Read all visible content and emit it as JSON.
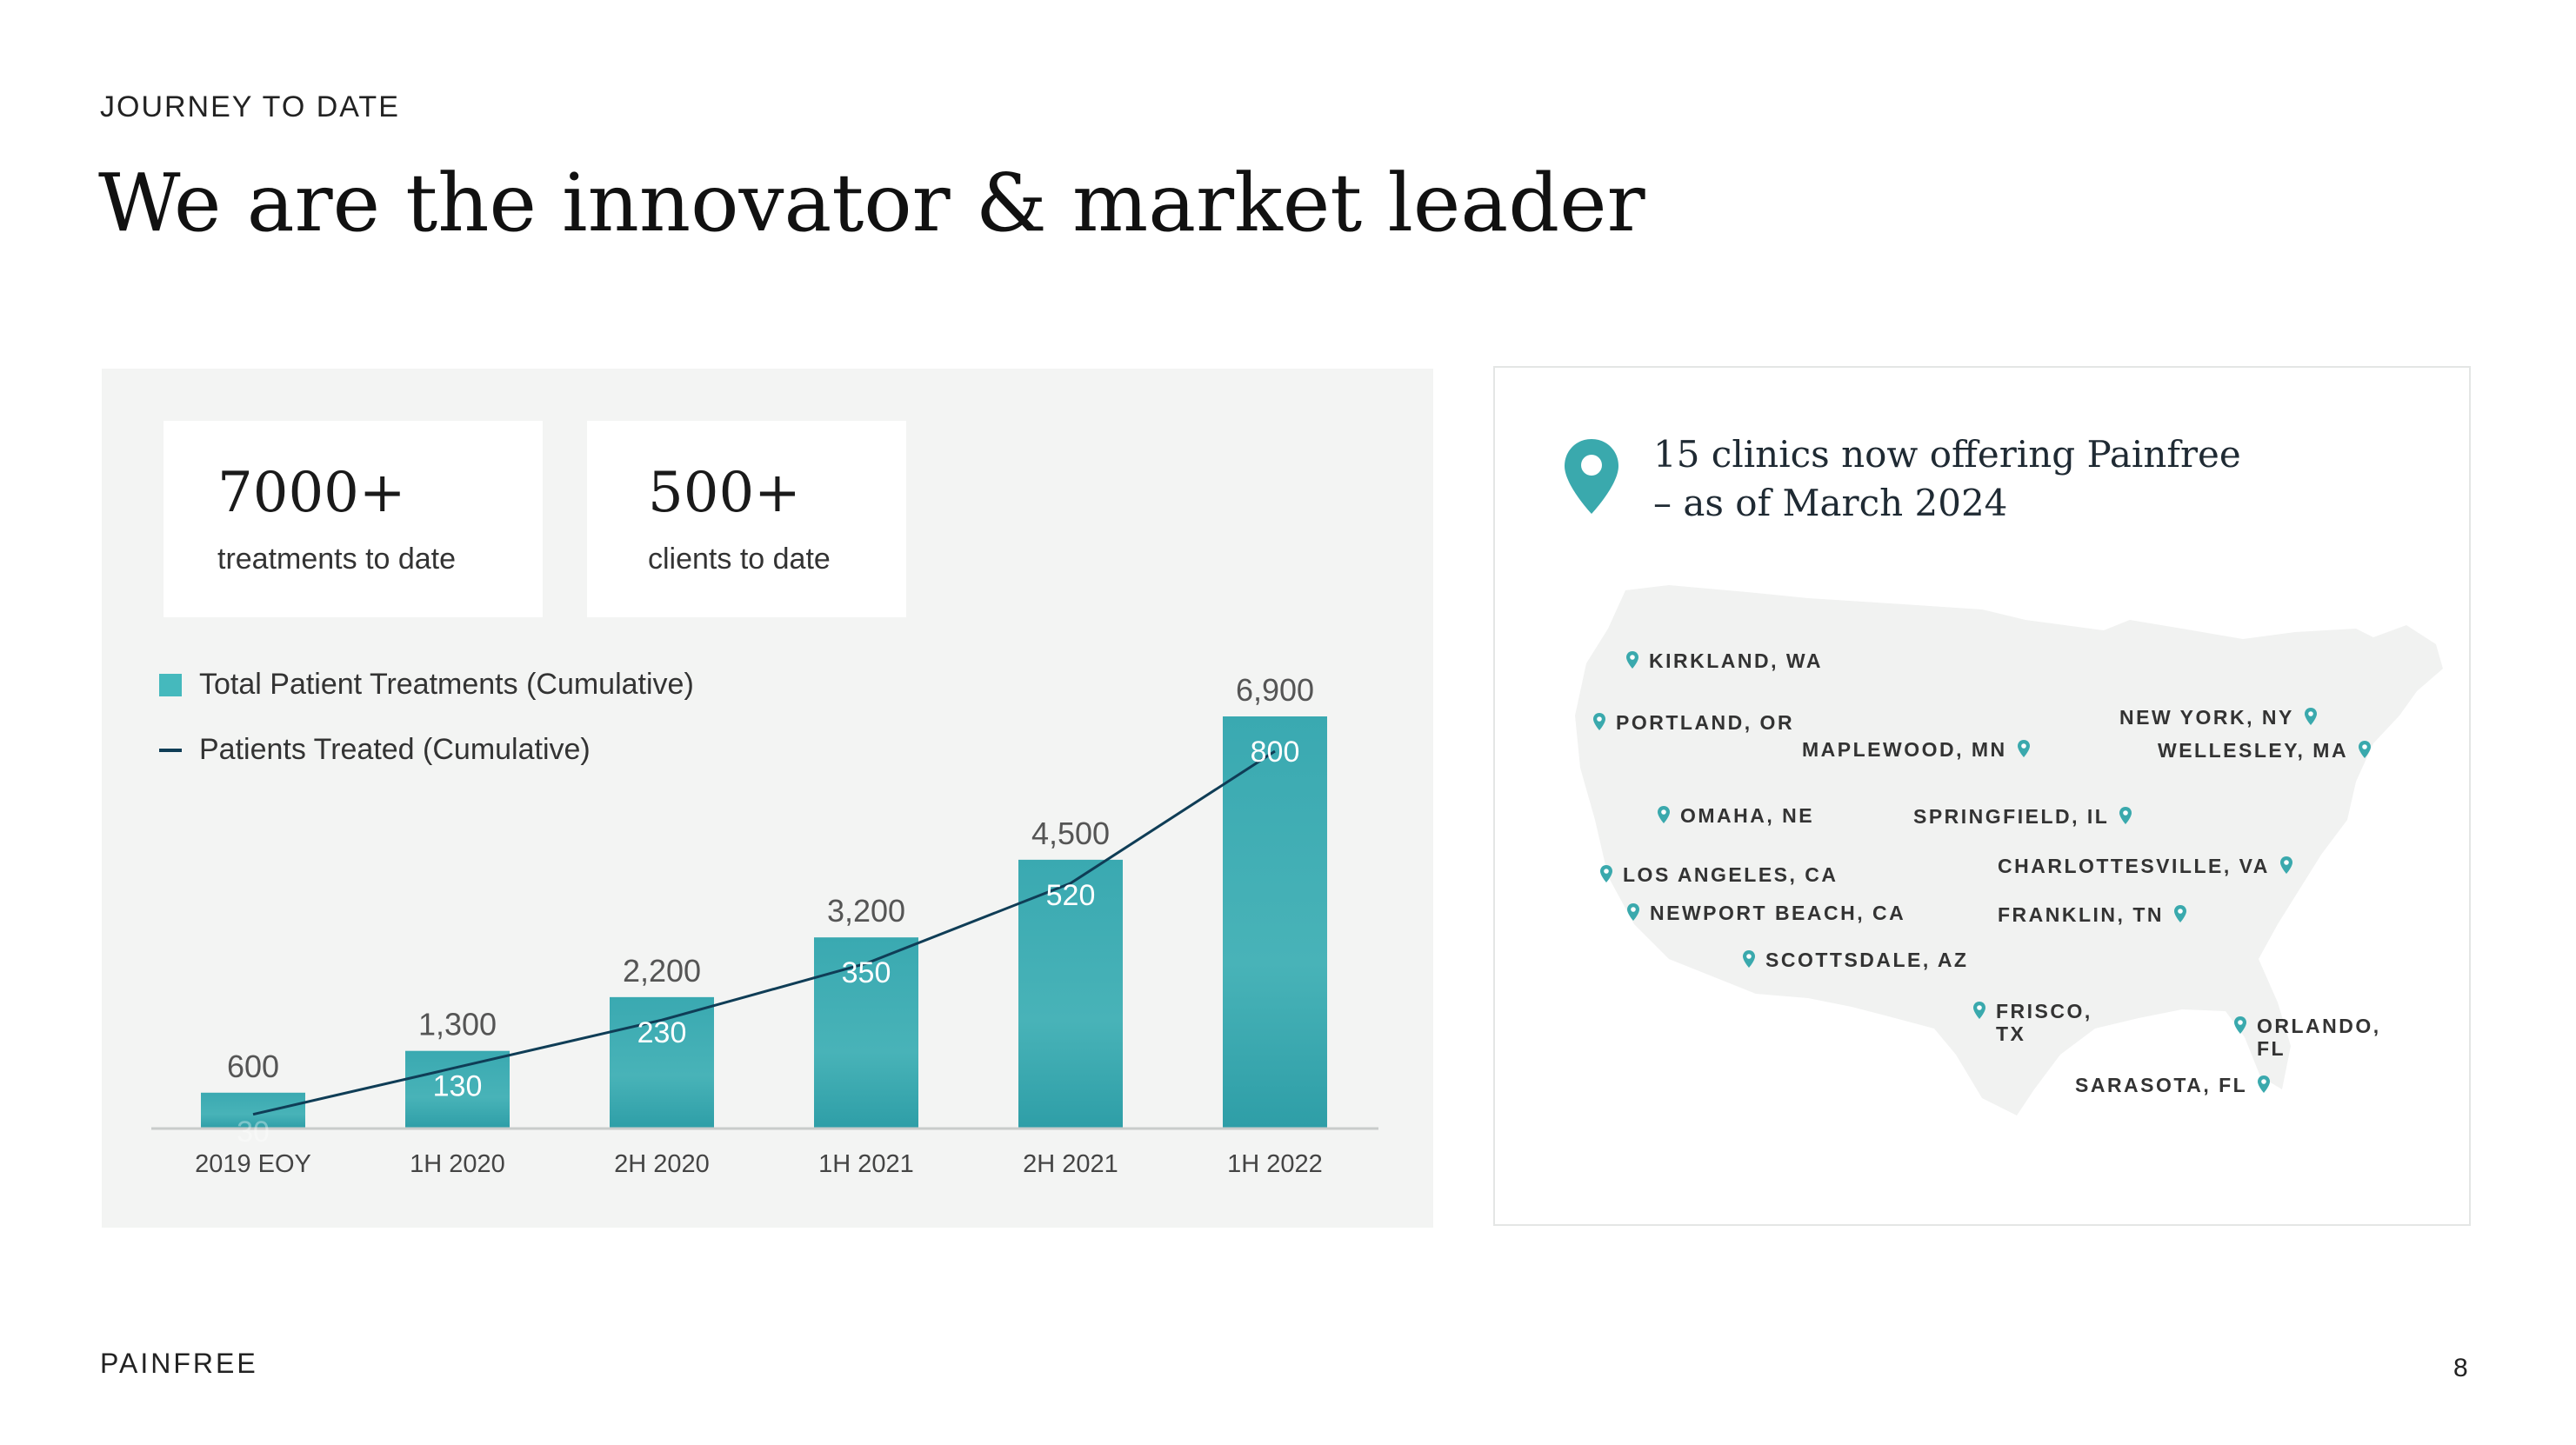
{
  "header": {
    "eyebrow": "JOURNEY TO DATE",
    "title": "We are the innovator & market leader"
  },
  "stats": [
    {
      "value": "7000+",
      "label": "treatments to date"
    },
    {
      "value": "500+",
      "label": "clients to date"
    }
  ],
  "legend": {
    "bars": "Total Patient Treatments (Cumulative)",
    "line": "Patients Treated (Cumulative)"
  },
  "chart_data": {
    "type": "bar",
    "categories": [
      "2019 EOY",
      "1H 2020",
      "2H 2020",
      "1H 2021",
      "2H 2021",
      "1H 2022"
    ],
    "series": [
      {
        "name": "Total Patient Treatments (Cumulative)",
        "type": "bar",
        "values": [
          600,
          1300,
          2200,
          3200,
          4500,
          6900
        ],
        "labels": [
          "600",
          "1,300",
          "2,200",
          "3,200",
          "4,500",
          "6,900"
        ]
      },
      {
        "name": "Patients Treated (Cumulative)",
        "type": "line",
        "values": [
          30,
          130,
          230,
          350,
          520,
          800
        ],
        "labels": [
          "30",
          "130",
          "230",
          "350",
          "520",
          "800"
        ]
      }
    ],
    "ylim": [
      0,
      6900
    ],
    "line_ylim": [
      0,
      800
    ],
    "xlabel": "",
    "ylabel": "",
    "grid": false
  },
  "map": {
    "title": "15 clinics now offering Painfree – as of March 2024",
    "clinics": [
      {
        "name": "KIRKLAND, WA"
      },
      {
        "name": "PORTLAND, OR"
      },
      {
        "name": "MAPLEWOOD, MN"
      },
      {
        "name": "NEW YORK, NY"
      },
      {
        "name": "WELLESLEY, MA"
      },
      {
        "name": "OMAHA, NE"
      },
      {
        "name": "SPRINGFIELD, IL"
      },
      {
        "name": "LOS ANGELES, CA"
      },
      {
        "name": "CHARLOTTESVILLE, VA"
      },
      {
        "name": "NEWPORT BEACH, CA"
      },
      {
        "name": "FRANKLIN, TN"
      },
      {
        "name": "SCOTTSDALE, AZ"
      },
      {
        "name": "FRISCO, TX"
      },
      {
        "name": "ORLANDO, FL"
      },
      {
        "name": "SARASOTA, FL"
      }
    ]
  },
  "footer": {
    "brand": "PAINFREE",
    "page": "8"
  },
  "colors": {
    "bar": "#3ba8b0",
    "line": "#0f3d56",
    "accent": "#45b9bd",
    "pin": "#3aa9ad"
  }
}
